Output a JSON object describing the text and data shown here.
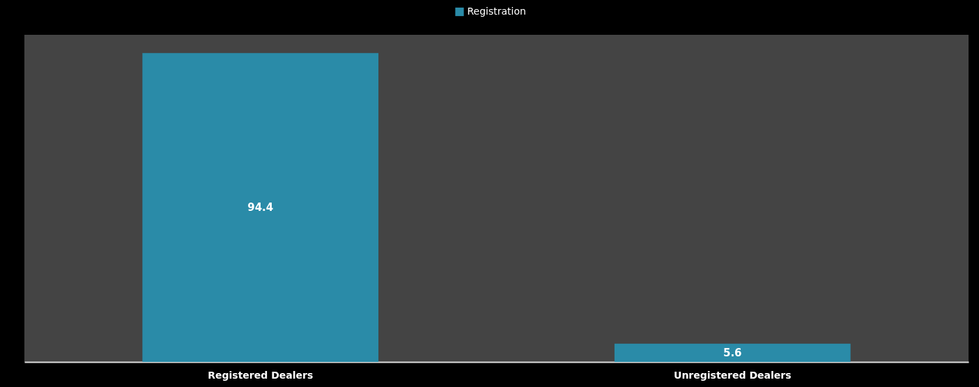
{
  "chart_data": {
    "type": "bar",
    "categories": [
      "Registered Dealers",
      "Unregistered Dealers"
    ],
    "series": [
      {
        "name": "Registration",
        "color": "#2a8ba8",
        "values": [
          94.4,
          5.6
        ]
      }
    ],
    "data_labels": true,
    "legend": "top",
    "grid": false
  }
}
